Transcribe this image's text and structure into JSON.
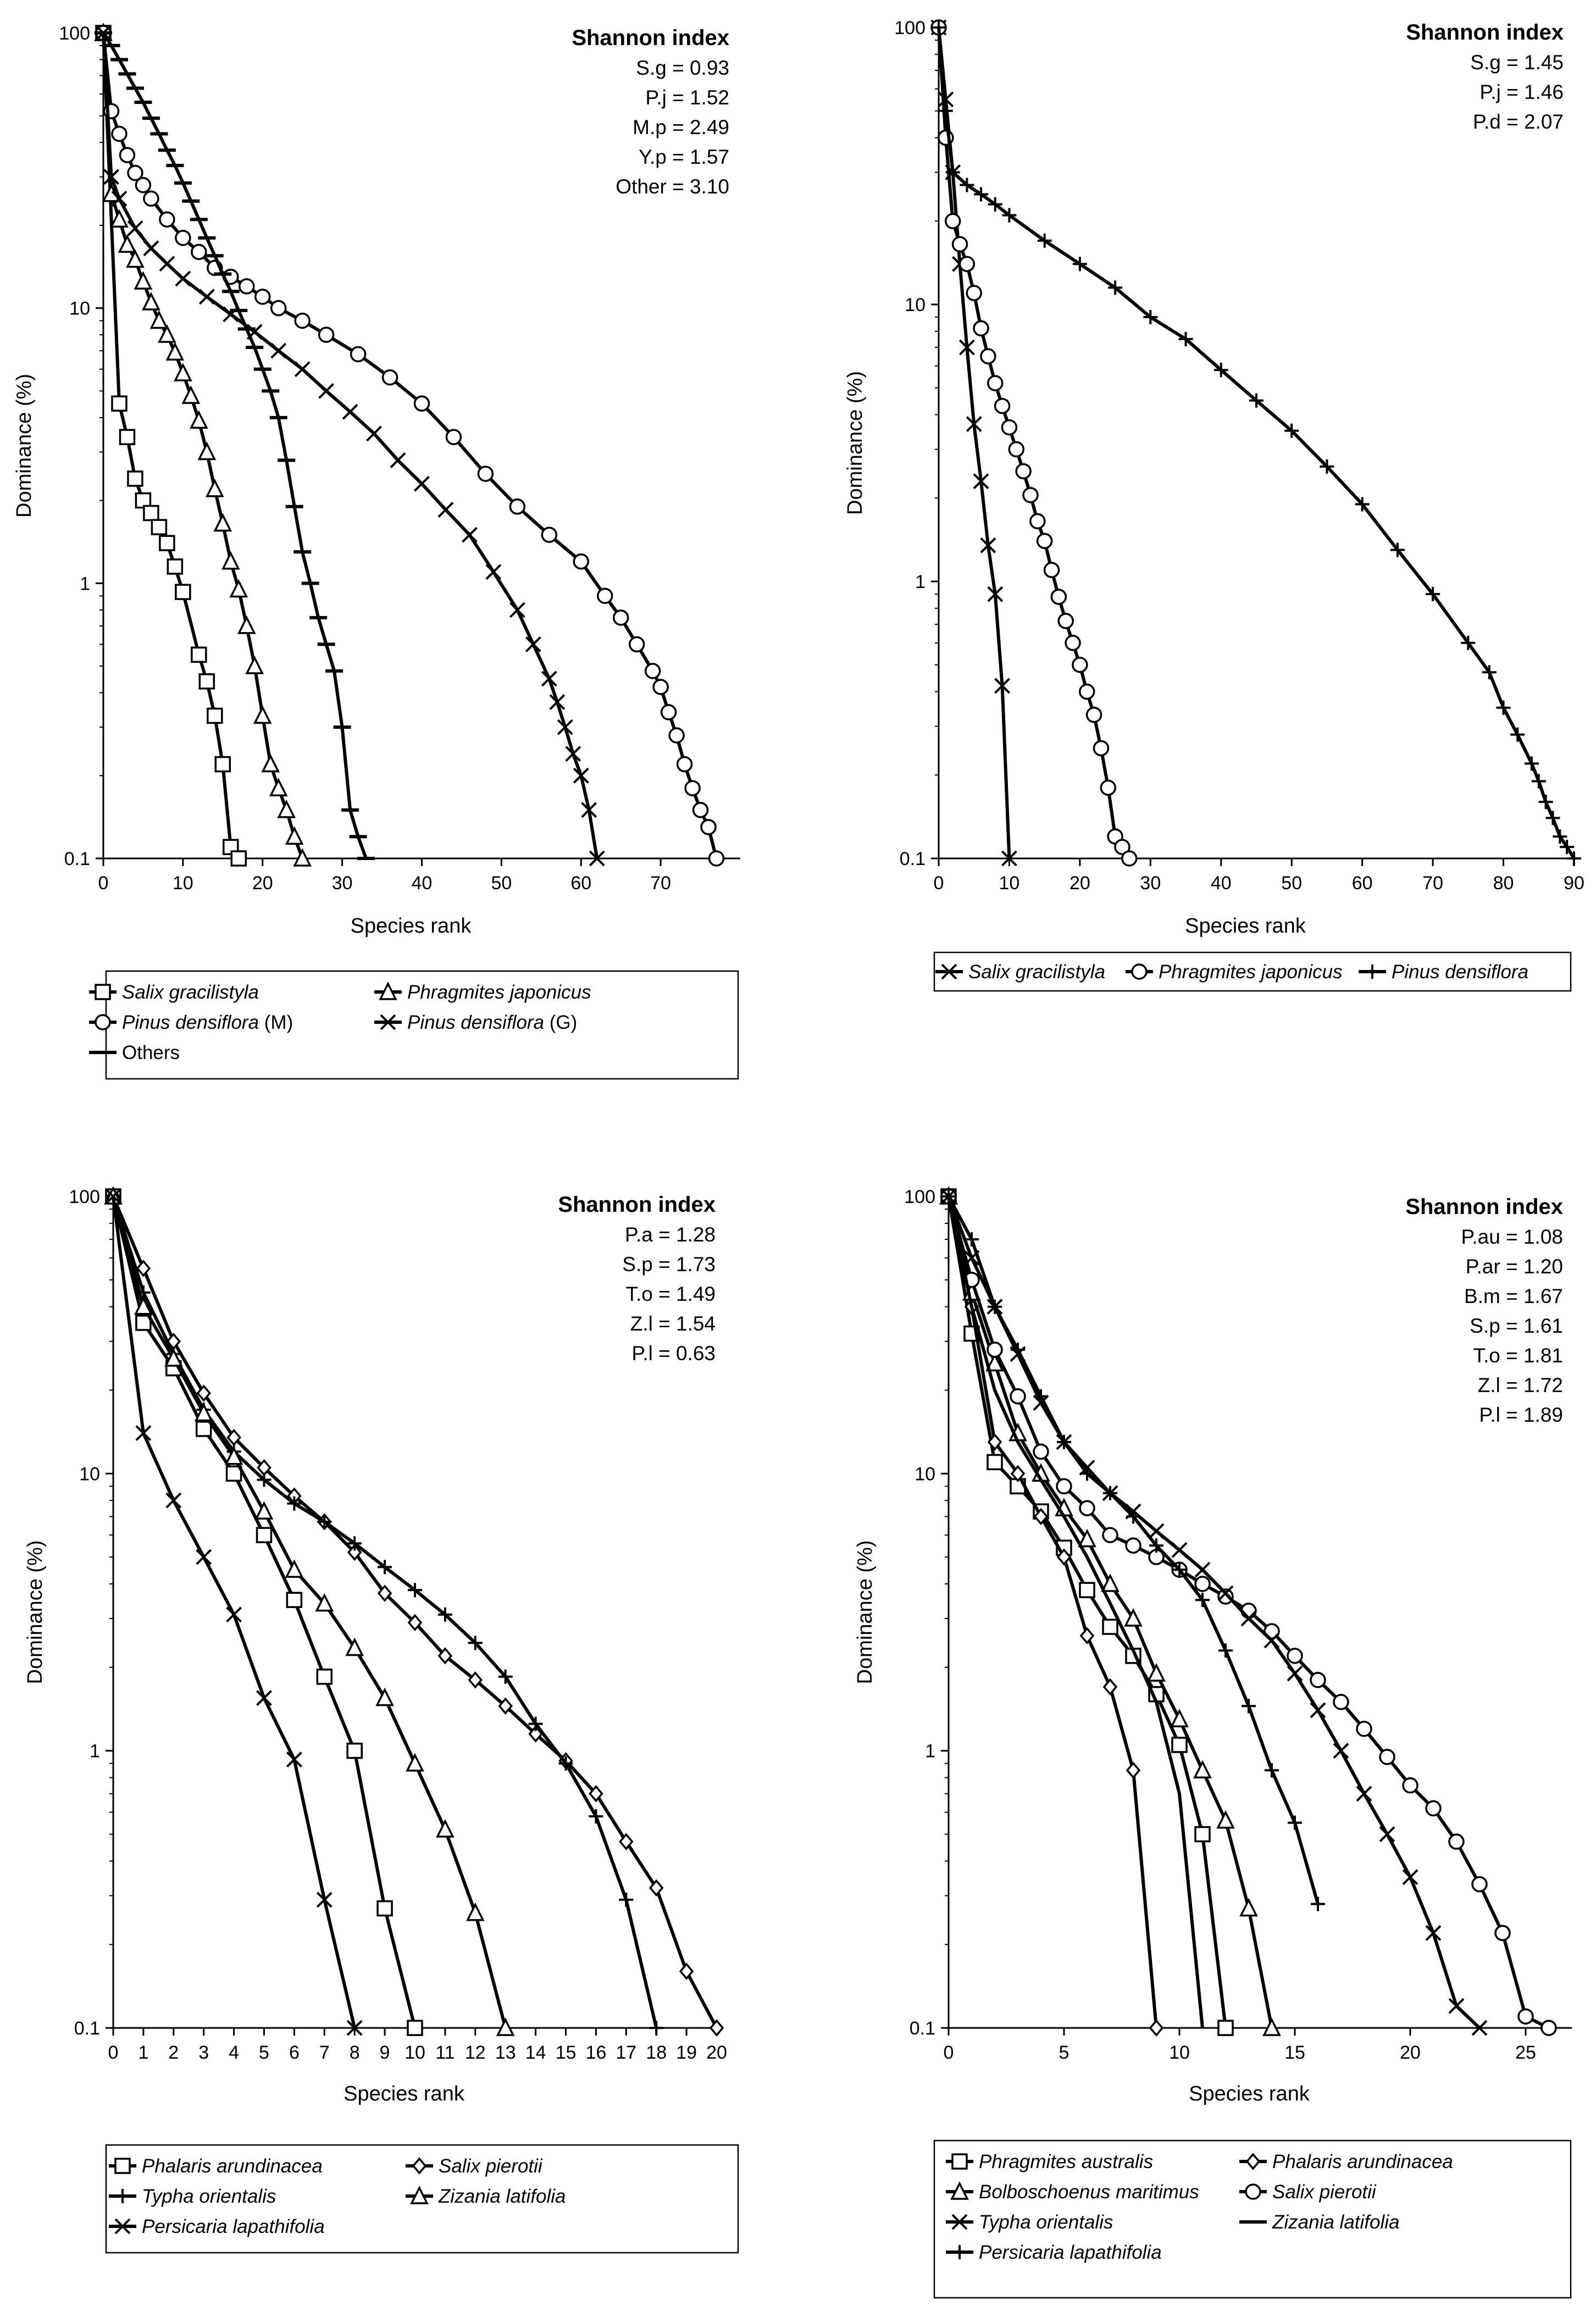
{
  "chart_data": [
    {
      "type": "line",
      "ylabel": "Dominance (%)",
      "xlabel": "Species rank",
      "yscale": "log",
      "ylim": [
        0.1,
        100
      ],
      "yticks": [
        "0.1",
        "1",
        "10",
        "100"
      ],
      "xlim": [
        0,
        80
      ],
      "xticks": [
        "0",
        "10",
        "20",
        "30",
        "40",
        "50",
        "60",
        "70"
      ],
      "shannon": {
        "title": "Shannon index",
        "lines": [
          "S.g = 0.93",
          "P.j = 1.52",
          "M.p = 2.49",
          "Y.p = 1.57",
          "Other = 3.10"
        ]
      },
      "series": [
        {
          "name": "Salix gracilistyla",
          "suffix": "",
          "marker": "square",
          "x": [
            0,
            2,
            3,
            4,
            5,
            6,
            7,
            8,
            9,
            10,
            12,
            13,
            14,
            15,
            16,
            17
          ],
          "y": [
            100,
            4.5,
            3.4,
            2.4,
            2.0,
            1.8,
            1.6,
            1.4,
            1.15,
            0.93,
            0.55,
            0.44,
            0.33,
            0.22,
            0.11,
            0.1
          ]
        },
        {
          "name": "Phragmites japonicus",
          "suffix": "",
          "marker": "triangle",
          "x": [
            0,
            1,
            2,
            3,
            4,
            5,
            6,
            7,
            8,
            9,
            10,
            11,
            12,
            13,
            14,
            15,
            16,
            17,
            18,
            19,
            20,
            21,
            22,
            23,
            24,
            25
          ],
          "y": [
            100,
            26,
            21,
            17,
            15,
            12.5,
            10.5,
            9,
            8,
            6.9,
            5.8,
            4.8,
            3.9,
            3.0,
            2.2,
            1.65,
            1.2,
            0.95,
            0.7,
            0.5,
            0.33,
            0.22,
            0.18,
            0.15,
            0.12,
            0.1
          ]
        },
        {
          "name": "Pinus densiflora",
          "suffix": " (M)",
          "marker": "circle",
          "x": [
            0,
            1,
            2,
            3,
            4,
            5,
            6,
            8,
            10,
            12,
            14,
            16,
            18,
            20,
            22,
            25,
            28,
            32,
            36,
            40,
            44,
            48,
            52,
            56,
            60,
            63,
            65,
            67,
            69,
            70,
            71,
            72,
            73,
            74,
            75,
            76,
            77
          ],
          "y": [
            100,
            52,
            43,
            36,
            31,
            28,
            25,
            21,
            18,
            16,
            14,
            13,
            12,
            11,
            10,
            9,
            8,
            6.8,
            5.6,
            4.5,
            3.4,
            2.5,
            1.9,
            1.5,
            1.2,
            0.9,
            0.75,
            0.6,
            0.48,
            0.42,
            0.34,
            0.28,
            0.22,
            0.18,
            0.15,
            0.13,
            0.1
          ]
        },
        {
          "name": "Pinus densiflora",
          "suffix": " (G)",
          "marker": "cross",
          "x": [
            0,
            1,
            2,
            4,
            6,
            8,
            10,
            13,
            16,
            19,
            22,
            25,
            28,
            31,
            34,
            37,
            40,
            43,
            46,
            49,
            52,
            54,
            56,
            57,
            58,
            59,
            60,
            61,
            62
          ],
          "y": [
            100,
            30,
            25,
            19.5,
            16.5,
            14.5,
            12.8,
            11,
            9.5,
            8.2,
            7,
            6,
            5,
            4.2,
            3.5,
            2.8,
            2.3,
            1.85,
            1.5,
            1.1,
            0.8,
            0.6,
            0.45,
            0.37,
            0.3,
            0.24,
            0.2,
            0.15,
            0.1
          ]
        },
        {
          "name": "Others",
          "suffix": "",
          "marker": "dash",
          "x": [
            0,
            1,
            2,
            3,
            4,
            5,
            6,
            7,
            8,
            9,
            10,
            11,
            12,
            13,
            14,
            15,
            16,
            17,
            18,
            19,
            20,
            21,
            22,
            23,
            24,
            25,
            26,
            27,
            28,
            29,
            30,
            31,
            32,
            33
          ],
          "y": [
            100,
            90,
            80,
            71,
            63,
            56,
            49,
            43,
            37.5,
            33,
            28.5,
            24.5,
            21,
            18,
            15.5,
            13.3,
            11.5,
            9.8,
            8.4,
            7.2,
            6.0,
            5.0,
            4.0,
            2.8,
            1.9,
            1.3,
            1.0,
            0.75,
            0.6,
            0.48,
            0.3,
            0.15,
            0.12,
            0.1
          ]
        }
      ]
    },
    {
      "type": "line",
      "ylabel": "Dominance (%)",
      "xlabel": "Species rank",
      "yscale": "log",
      "ylim": [
        0.1,
        100
      ],
      "yticks": [
        "0.1",
        "1",
        "10",
        "100"
      ],
      "xlim": [
        0,
        90
      ],
      "xticks": [
        "0",
        "10",
        "20",
        "30",
        "40",
        "50",
        "60",
        "70",
        "80",
        "90"
      ],
      "shannon": {
        "title": "Shannon index",
        "lines": [
          "S.g = 1.45",
          "P.j = 1.46",
          "P.d = 2.07"
        ]
      },
      "series": [
        {
          "name": "Salix gracilistyla",
          "suffix": "",
          "marker": "cross",
          "x": [
            0,
            1,
            2,
            3,
            4,
            5,
            6,
            7,
            8,
            9,
            10
          ],
          "y": [
            100,
            55,
            30,
            14,
            7,
            3.7,
            2.3,
            1.35,
            0.9,
            0.42,
            0.1
          ]
        },
        {
          "name": "Phragmites japonicus",
          "suffix": "",
          "marker": "circle",
          "x": [
            0,
            1,
            2,
            3,
            4,
            5,
            6,
            7,
            8,
            9,
            10,
            11,
            12,
            13,
            14,
            15,
            16,
            17,
            18,
            19,
            20,
            21,
            22,
            23,
            24,
            25,
            26,
            27
          ],
          "y": [
            100,
            40,
            20,
            16.5,
            14,
            11,
            8.2,
            6.5,
            5.2,
            4.3,
            3.6,
            3.0,
            2.5,
            2.05,
            1.65,
            1.4,
            1.1,
            0.88,
            0.72,
            0.6,
            0.5,
            0.4,
            0.33,
            0.25,
            0.18,
            0.12,
            0.11,
            0.1
          ]
        },
        {
          "name": "Pinus densiflora",
          "suffix": "",
          "marker": "plus",
          "x": [
            0,
            1,
            2,
            4,
            6,
            8,
            10,
            15,
            20,
            25,
            30,
            35,
            40,
            45,
            50,
            55,
            60,
            65,
            70,
            75,
            78,
            80,
            82,
            84,
            85,
            86,
            87,
            88,
            89,
            90
          ],
          "y": [
            100,
            50,
            30,
            27,
            25,
            23,
            21,
            17,
            14,
            11.5,
            9,
            7.5,
            5.8,
            4.5,
            3.5,
            2.6,
            1.9,
            1.3,
            0.9,
            0.6,
            0.47,
            0.35,
            0.28,
            0.22,
            0.19,
            0.16,
            0.14,
            0.12,
            0.11,
            0.1
          ]
        }
      ]
    },
    {
      "type": "line",
      "ylabel": "Dominance (%)",
      "xlabel": "Species rank",
      "yscale": "log",
      "ylim": [
        0.1,
        100
      ],
      "yticks": [
        "0.1",
        "1",
        "10",
        "100"
      ],
      "xlim": [
        0,
        20
      ],
      "xticks": [
        "0",
        "1",
        "2",
        "3",
        "4",
        "5",
        "6",
        "7",
        "8",
        "9",
        "10",
        "11",
        "12",
        "13",
        "14",
        "15",
        "16",
        "17",
        "18",
        "19",
        "20"
      ],
      "shannon": {
        "title": "Shannon index",
        "lines": [
          "P.a = 1.28",
          "S.p = 1.73",
          "T.o = 1.49",
          "Z.l = 1.54",
          "P.l = 0.63"
        ]
      },
      "series": [
        {
          "name": "Phalaris arundinacea",
          "suffix": "",
          "marker": "square",
          "x": [
            0,
            1,
            2,
            3,
            4,
            5,
            6,
            7,
            8,
            9,
            10
          ],
          "y": [
            100,
            35,
            24,
            14.5,
            10,
            6,
            3.5,
            1.85,
            1.0,
            0.27,
            0.1
          ]
        },
        {
          "name": "Salix pierotii",
          "suffix": "",
          "marker": "diamond",
          "x": [
            0,
            1,
            2,
            3,
            4,
            5,
            6,
            7,
            8,
            9,
            10,
            11,
            12,
            13,
            14,
            15,
            16,
            17,
            18,
            19,
            20
          ],
          "y": [
            100,
            55,
            30,
            19.5,
            13.5,
            10.5,
            8.3,
            6.7,
            5.2,
            3.7,
            2.9,
            2.2,
            1.8,
            1.45,
            1.15,
            0.92,
            0.7,
            0.47,
            0.32,
            0.16,
            0.1
          ]
        },
        {
          "name": "Typha orientalis",
          "suffix": "",
          "marker": "plus",
          "x": [
            0,
            1,
            2,
            3,
            4,
            5,
            6,
            7,
            8,
            9,
            10,
            11,
            12,
            13,
            14,
            15,
            16,
            17,
            18
          ],
          "y": [
            100,
            45,
            27,
            17,
            12,
            9.5,
            7.8,
            6.7,
            5.6,
            4.6,
            3.8,
            3.1,
            2.45,
            1.85,
            1.25,
            0.9,
            0.58,
            0.29,
            0.1
          ]
        },
        {
          "name": "Zizania latifolia",
          "suffix": "",
          "marker": "triangle",
          "x": [
            0,
            1,
            2,
            3,
            4,
            5,
            6,
            7,
            8,
            9,
            10,
            11,
            12,
            13
          ],
          "y": [
            100,
            40,
            26,
            16.5,
            11.5,
            7.3,
            4.5,
            3.4,
            2.35,
            1.55,
            0.9,
            0.52,
            0.26,
            0.1
          ]
        },
        {
          "name": "Persicaria lapathifolia",
          "suffix": "",
          "marker": "cross",
          "x": [
            0,
            1,
            2,
            3,
            4,
            5,
            6,
            7,
            8
          ],
          "y": [
            100,
            14,
            8,
            5,
            3.1,
            1.55,
            0.93,
            0.29,
            0.1
          ]
        }
      ]
    },
    {
      "type": "line",
      "ylabel": "Dominance (%)",
      "xlabel": "Species rank",
      "yscale": "log",
      "ylim": [
        0.1,
        100
      ],
      "yticks": [
        "0.1",
        "1",
        "10",
        "100"
      ],
      "xlim": [
        0,
        27
      ],
      "xticks": [
        "0",
        "5",
        "10",
        "15",
        "20",
        "25"
      ],
      "shannon": {
        "title": "Shannon index",
        "lines": [
          "P.au = 1.08",
          "P.ar = 1.20",
          "B.m = 1.67",
          "S.p = 1.61",
          "T.o = 1.81",
          "Z.l = 1.72",
          "P.l = 1.89"
        ]
      },
      "series": [
        {
          "name": "Phragmites australis",
          "suffix": "",
          "marker": "square",
          "x": [
            0,
            1,
            2,
            3,
            4,
            5,
            6,
            7,
            8,
            9,
            10,
            11,
            12
          ],
          "y": [
            100,
            32,
            11,
            9,
            7.3,
            5.4,
            3.8,
            2.8,
            2.2,
            1.6,
            1.05,
            0.5,
            0.1
          ]
        },
        {
          "name": "Phalaris arundinacea",
          "suffix": "",
          "marker": "diamond",
          "x": [
            0,
            1,
            2,
            3,
            4,
            5,
            6,
            7,
            8,
            9
          ],
          "y": [
            100,
            40,
            13,
            10,
            7,
            5,
            2.6,
            1.7,
            0.85,
            0.1
          ]
        },
        {
          "name": "Bolboschoenus maritimus",
          "suffix": "",
          "marker": "triangle",
          "x": [
            0,
            1,
            2,
            3,
            4,
            5,
            6,
            7,
            8,
            9,
            10,
            11,
            12,
            13,
            14
          ],
          "y": [
            100,
            45,
            25,
            14,
            10,
            7.5,
            5.8,
            4,
            3,
            1.9,
            1.3,
            0.85,
            0.56,
            0.27,
            0.1
          ]
        },
        {
          "name": "Salix pierotii",
          "suffix": "",
          "marker": "circle",
          "x": [
            0,
            1,
            2,
            3,
            4,
            5,
            6,
            7,
            8,
            9,
            10,
            11,
            12,
            13,
            14,
            15,
            16,
            17,
            18,
            19,
            20,
            21,
            22,
            23,
            24,
            25,
            26
          ],
          "y": [
            100,
            50,
            28,
            19,
            12,
            9,
            7.5,
            6,
            5.5,
            5,
            4.5,
            4,
            3.6,
            3.2,
            2.7,
            2.2,
            1.8,
            1.5,
            1.2,
            0.95,
            0.75,
            0.62,
            0.47,
            0.33,
            0.22,
            0.11,
            0.1
          ]
        },
        {
          "name": "Typha orientalis",
          "suffix": "",
          "marker": "cross",
          "x": [
            0,
            1,
            2,
            3,
            4,
            5,
            6,
            7,
            8,
            9,
            10,
            11,
            12,
            13,
            14,
            15,
            16,
            17,
            18,
            19,
            20,
            21,
            22,
            23
          ],
          "y": [
            100,
            60,
            40,
            27,
            18,
            13,
            10.5,
            8.5,
            7.3,
            6.2,
            5.3,
            4.5,
            3.7,
            3,
            2.5,
            1.9,
            1.4,
            1.0,
            0.7,
            0.5,
            0.35,
            0.22,
            0.12,
            0.1
          ]
        },
        {
          "name": "Zizania latifolia",
          "suffix": "",
          "marker": "none",
          "x": [
            0,
            1,
            2,
            3,
            4,
            5,
            6,
            7,
            8,
            9,
            10,
            11
          ],
          "y": [
            100,
            40,
            20,
            13,
            9.5,
            7,
            5,
            3.4,
            2.3,
            1.5,
            0.7,
            0.1
          ]
        },
        {
          "name": "Persicaria lapathifolia",
          "suffix": "",
          "marker": "plus",
          "x": [
            0,
            1,
            2,
            3,
            4,
            5,
            6,
            7,
            8,
            9,
            10,
            11,
            12,
            13,
            14,
            15,
            16
          ],
          "y": [
            100,
            70,
            40,
            28,
            19,
            13,
            10,
            8.5,
            7,
            5.5,
            4.5,
            3.5,
            2.3,
            1.45,
            0.85,
            0.55,
            0.28
          ]
        }
      ]
    }
  ]
}
